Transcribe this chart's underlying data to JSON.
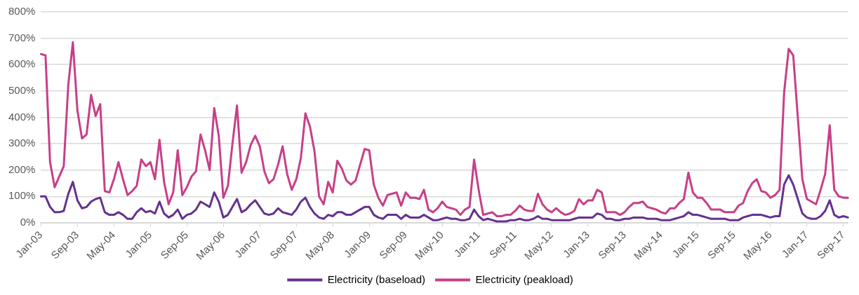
{
  "chart_data": {
    "type": "line",
    "categories": [
      "Jan-03",
      null,
      null,
      null,
      null,
      null,
      null,
      null,
      "Sep-03",
      null,
      null,
      null,
      null,
      null,
      null,
      null,
      "May-04",
      null,
      null,
      null,
      null,
      null,
      null,
      null,
      "Jan-05",
      null,
      null,
      null,
      null,
      null,
      null,
      null,
      "Sep-05",
      null,
      null,
      null,
      null,
      null,
      null,
      null,
      "May-06",
      null,
      null,
      null,
      null,
      null,
      null,
      null,
      "Jan-07",
      null,
      null,
      null,
      null,
      null,
      null,
      null,
      "Sep-07",
      null,
      null,
      null,
      null,
      null,
      null,
      null,
      "May-08",
      null,
      null,
      null,
      null,
      null,
      null,
      null,
      "Jan-09",
      null,
      null,
      null,
      null,
      null,
      null,
      null,
      "Sep-09",
      null,
      null,
      null,
      null,
      null,
      null,
      null,
      "May-10",
      null,
      null,
      null,
      null,
      null,
      null,
      null,
      "Jan-11",
      null,
      null,
      null,
      null,
      null,
      null,
      null,
      "Sep-11",
      null,
      null,
      null,
      null,
      null,
      null,
      null,
      "May-12",
      null,
      null,
      null,
      null,
      null,
      null,
      null,
      "Jan-13",
      null,
      null,
      null,
      null,
      null,
      null,
      null,
      "Sep-13",
      null,
      null,
      null,
      null,
      null,
      null,
      null,
      "May-14",
      null,
      null,
      null,
      null,
      null,
      null,
      null,
      "Jan-15",
      null,
      null,
      null,
      null,
      null,
      null,
      null,
      "Sep-15",
      null,
      null,
      null,
      null,
      null,
      null,
      null,
      "May-16",
      null,
      null,
      null,
      null,
      null,
      null,
      null,
      "Jan-17",
      null,
      null,
      null,
      null,
      null,
      null,
      null,
      "Sep-17",
      null
    ],
    "series": [
      {
        "name": "Electricity (baseload)",
        "color": "#65318f",
        "values": [
          100,
          100,
          60,
          40,
          40,
          45,
          110,
          155,
          85,
          55,
          60,
          80,
          90,
          95,
          40,
          30,
          30,
          40,
          30,
          15,
          15,
          40,
          55,
          40,
          45,
          35,
          80,
          35,
          20,
          30,
          50,
          15,
          30,
          35,
          50,
          80,
          70,
          60,
          115,
          80,
          20,
          30,
          60,
          90,
          40,
          50,
          70,
          85,
          60,
          35,
          30,
          35,
          55,
          40,
          35,
          30,
          50,
          80,
          95,
          60,
          35,
          20,
          15,
          30,
          25,
          40,
          40,
          30,
          30,
          40,
          50,
          60,
          60,
          30,
          20,
          15,
          30,
          30,
          30,
          15,
          30,
          20,
          20,
          20,
          30,
          20,
          10,
          10,
          15,
          20,
          15,
          15,
          10,
          10,
          15,
          50,
          25,
          10,
          15,
          10,
          5,
          5,
          5,
          10,
          10,
          15,
          10,
          10,
          15,
          25,
          15,
          15,
          10,
          10,
          10,
          10,
          10,
          15,
          20,
          20,
          20,
          20,
          35,
          30,
          15,
          15,
          10,
          10,
          15,
          15,
          20,
          20,
          20,
          15,
          15,
          15,
          10,
          10,
          10,
          15,
          20,
          25,
          40,
          30,
          30,
          25,
          20,
          15,
          15,
          15,
          15,
          10,
          10,
          10,
          20,
          25,
          30,
          30,
          30,
          25,
          20,
          25,
          25,
          145,
          180,
          145,
          90,
          35,
          20,
          15,
          15,
          25,
          45,
          85,
          30,
          20,
          25,
          20
        ]
      },
      {
        "name": "Electricity (peakload)",
        "color": "#c83f87",
        "values": [
          640,
          635,
          230,
          135,
          175,
          215,
          525,
          685,
          425,
          320,
          335,
          485,
          405,
          450,
          120,
          115,
          165,
          230,
          165,
          105,
          120,
          140,
          240,
          215,
          230,
          165,
          315,
          155,
          70,
          115,
          275,
          105,
          135,
          175,
          195,
          335,
          275,
          200,
          435,
          330,
          95,
          140,
          300,
          445,
          190,
          230,
          295,
          330,
          290,
          195,
          150,
          165,
          220,
          290,
          185,
          125,
          165,
          245,
          415,
          365,
          270,
          100,
          70,
          155,
          115,
          235,
          205,
          160,
          145,
          160,
          220,
          280,
          275,
          145,
          95,
          65,
          105,
          110,
          115,
          65,
          115,
          95,
          95,
          90,
          125,
          50,
          40,
          55,
          80,
          60,
          55,
          50,
          30,
          50,
          60,
          240,
          125,
          30,
          35,
          40,
          25,
          25,
          30,
          30,
          45,
          65,
          50,
          45,
          45,
          110,
          70,
          50,
          40,
          55,
          40,
          30,
          35,
          45,
          90,
          70,
          85,
          85,
          125,
          115,
          40,
          40,
          40,
          30,
          40,
          60,
          75,
          75,
          80,
          60,
          55,
          50,
          40,
          35,
          55,
          55,
          75,
          90,
          190,
          115,
          95,
          95,
          75,
          50,
          50,
          50,
          40,
          40,
          40,
          65,
          75,
          120,
          150,
          165,
          120,
          115,
          95,
          105,
          125,
          495,
          660,
          635,
          400,
          165,
          90,
          80,
          70,
          125,
          185,
          370,
          125,
          100,
          95,
          95
        ]
      }
    ],
    "ylim": [
      0,
      800
    ],
    "yticks": [
      {
        "value": 0,
        "label": "0%"
      },
      {
        "value": 100,
        "label": "100%"
      },
      {
        "value": 200,
        "label": "200%"
      },
      {
        "value": 300,
        "label": "300%"
      },
      {
        "value": 400,
        "label": "400%"
      },
      {
        "value": 500,
        "label": "500%"
      },
      {
        "value": 600,
        "label": "600%"
      },
      {
        "value": 700,
        "label": "700%"
      },
      {
        "value": 800,
        "label": "800%"
      }
    ],
    "grid": "y",
    "legend": "bottom",
    "marker": "none",
    "line_style": "solid"
  }
}
